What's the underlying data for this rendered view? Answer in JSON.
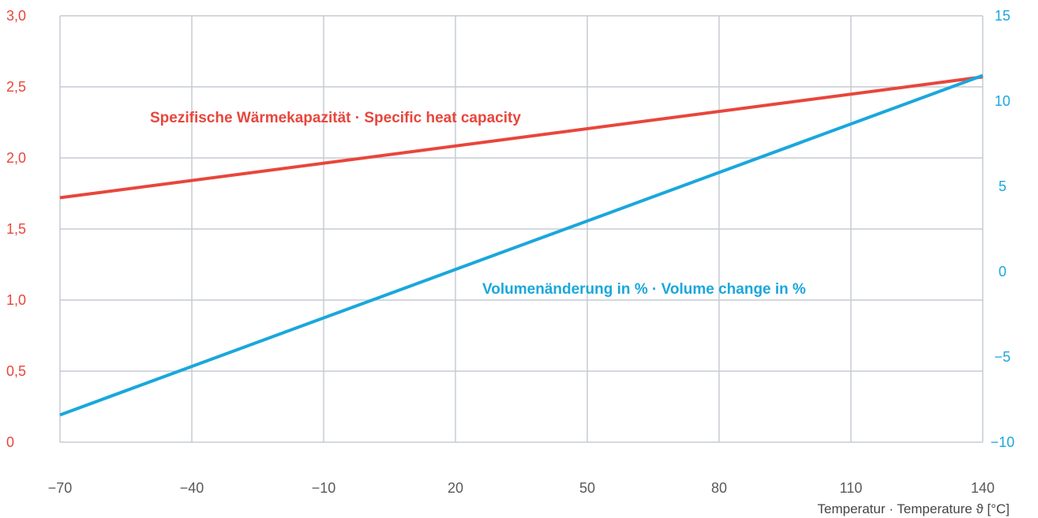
{
  "chart_data": {
    "type": "line",
    "x": [
      -70,
      140
    ],
    "series": [
      {
        "name": "Spezifische Wärmekapazität · Specific heat capacity",
        "axis": "left",
        "color": "#e8463c",
        "values": [
          1.72,
          2.57
        ]
      },
      {
        "name": "Volumenänderung in % · Volume change in %",
        "axis": "right",
        "color": "#1aa7dc",
        "values": [
          -8.4,
          11.5
        ]
      }
    ],
    "x_ticks": [
      "−70",
      "−40",
      "−10",
      "20",
      "50",
      "80",
      "110",
      "140"
    ],
    "x_tick_values": [
      -70,
      -40,
      -10,
      20,
      50,
      80,
      110,
      140
    ],
    "y_left_ticks": [
      "0",
      "0,5",
      "1,0",
      "1,5",
      "2,0",
      "2,5",
      "3,0"
    ],
    "y_left_tick_values": [
      0,
      0.5,
      1.0,
      1.5,
      2.0,
      2.5,
      3.0
    ],
    "y_right_ticks": [
      "−10",
      "−5",
      "0",
      "5",
      "10",
      "15"
    ],
    "y_right_tick_values": [
      -10,
      -5,
      0,
      5,
      10,
      15
    ],
    "xlabel": "Temperatur · Temperature ϑ [°C]",
    "xlim": [
      -70,
      140
    ],
    "ylim_left": [
      0,
      3.0
    ],
    "ylim_right": [
      -10,
      15
    ],
    "grid": true,
    "colors": {
      "left_axis": "#e8463c",
      "right_axis": "#1aa7dc",
      "grid": "#c5ccd3",
      "x_ticks": "#5a5a5a"
    }
  }
}
